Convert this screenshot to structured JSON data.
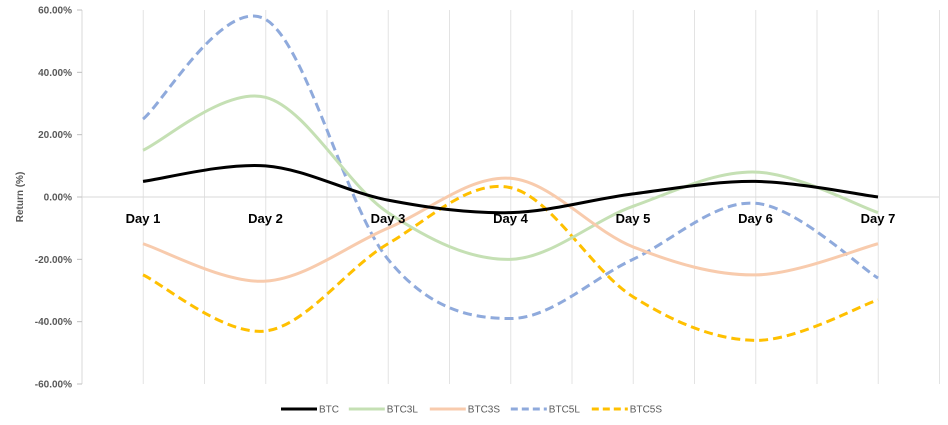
{
  "chart_data": {
    "type": "line",
    "ylabel": "Return (%)",
    "xlabel": "",
    "categories": [
      "Day 1",
      "Day 2",
      "Day 3",
      "Day 4",
      "Day 5",
      "Day 6",
      "Day 7"
    ],
    "ylim": [
      -60,
      60
    ],
    "yticks": [
      60,
      40,
      20,
      0,
      -20,
      -40,
      -60
    ],
    "ytick_labels": [
      "60.00%",
      "40.00%",
      "20.00%",
      "0.00%",
      "-20.00%",
      "-40.00%",
      "-60.00%"
    ],
    "grid": "vertical",
    "legend_position": "bottom",
    "series": [
      {
        "name": "BTC",
        "color": "#000000",
        "dash": "solid",
        "values": [
          5,
          10,
          -1,
          -5,
          1,
          5,
          0
        ]
      },
      {
        "name": "BTC3L",
        "color": "#c5e0b4",
        "dash": "solid",
        "values": [
          15,
          32,
          -5,
          -20,
          -3,
          8,
          -5
        ]
      },
      {
        "name": "BTC3S",
        "color": "#f8cbad",
        "dash": "solid",
        "values": [
          -15,
          -27,
          -10,
          6,
          -16,
          -25,
          -15
        ]
      },
      {
        "name": "BTC5L",
        "color": "#8faadc",
        "dash": "dashed",
        "values": [
          25,
          57,
          -20,
          -39,
          -20,
          -2,
          -26
        ]
      },
      {
        "name": "BTC5S",
        "color": "#ffc000",
        "dash": "dashed",
        "values": [
          -25,
          -43,
          -15,
          3,
          -32,
          -46,
          -33
        ]
      }
    ]
  }
}
